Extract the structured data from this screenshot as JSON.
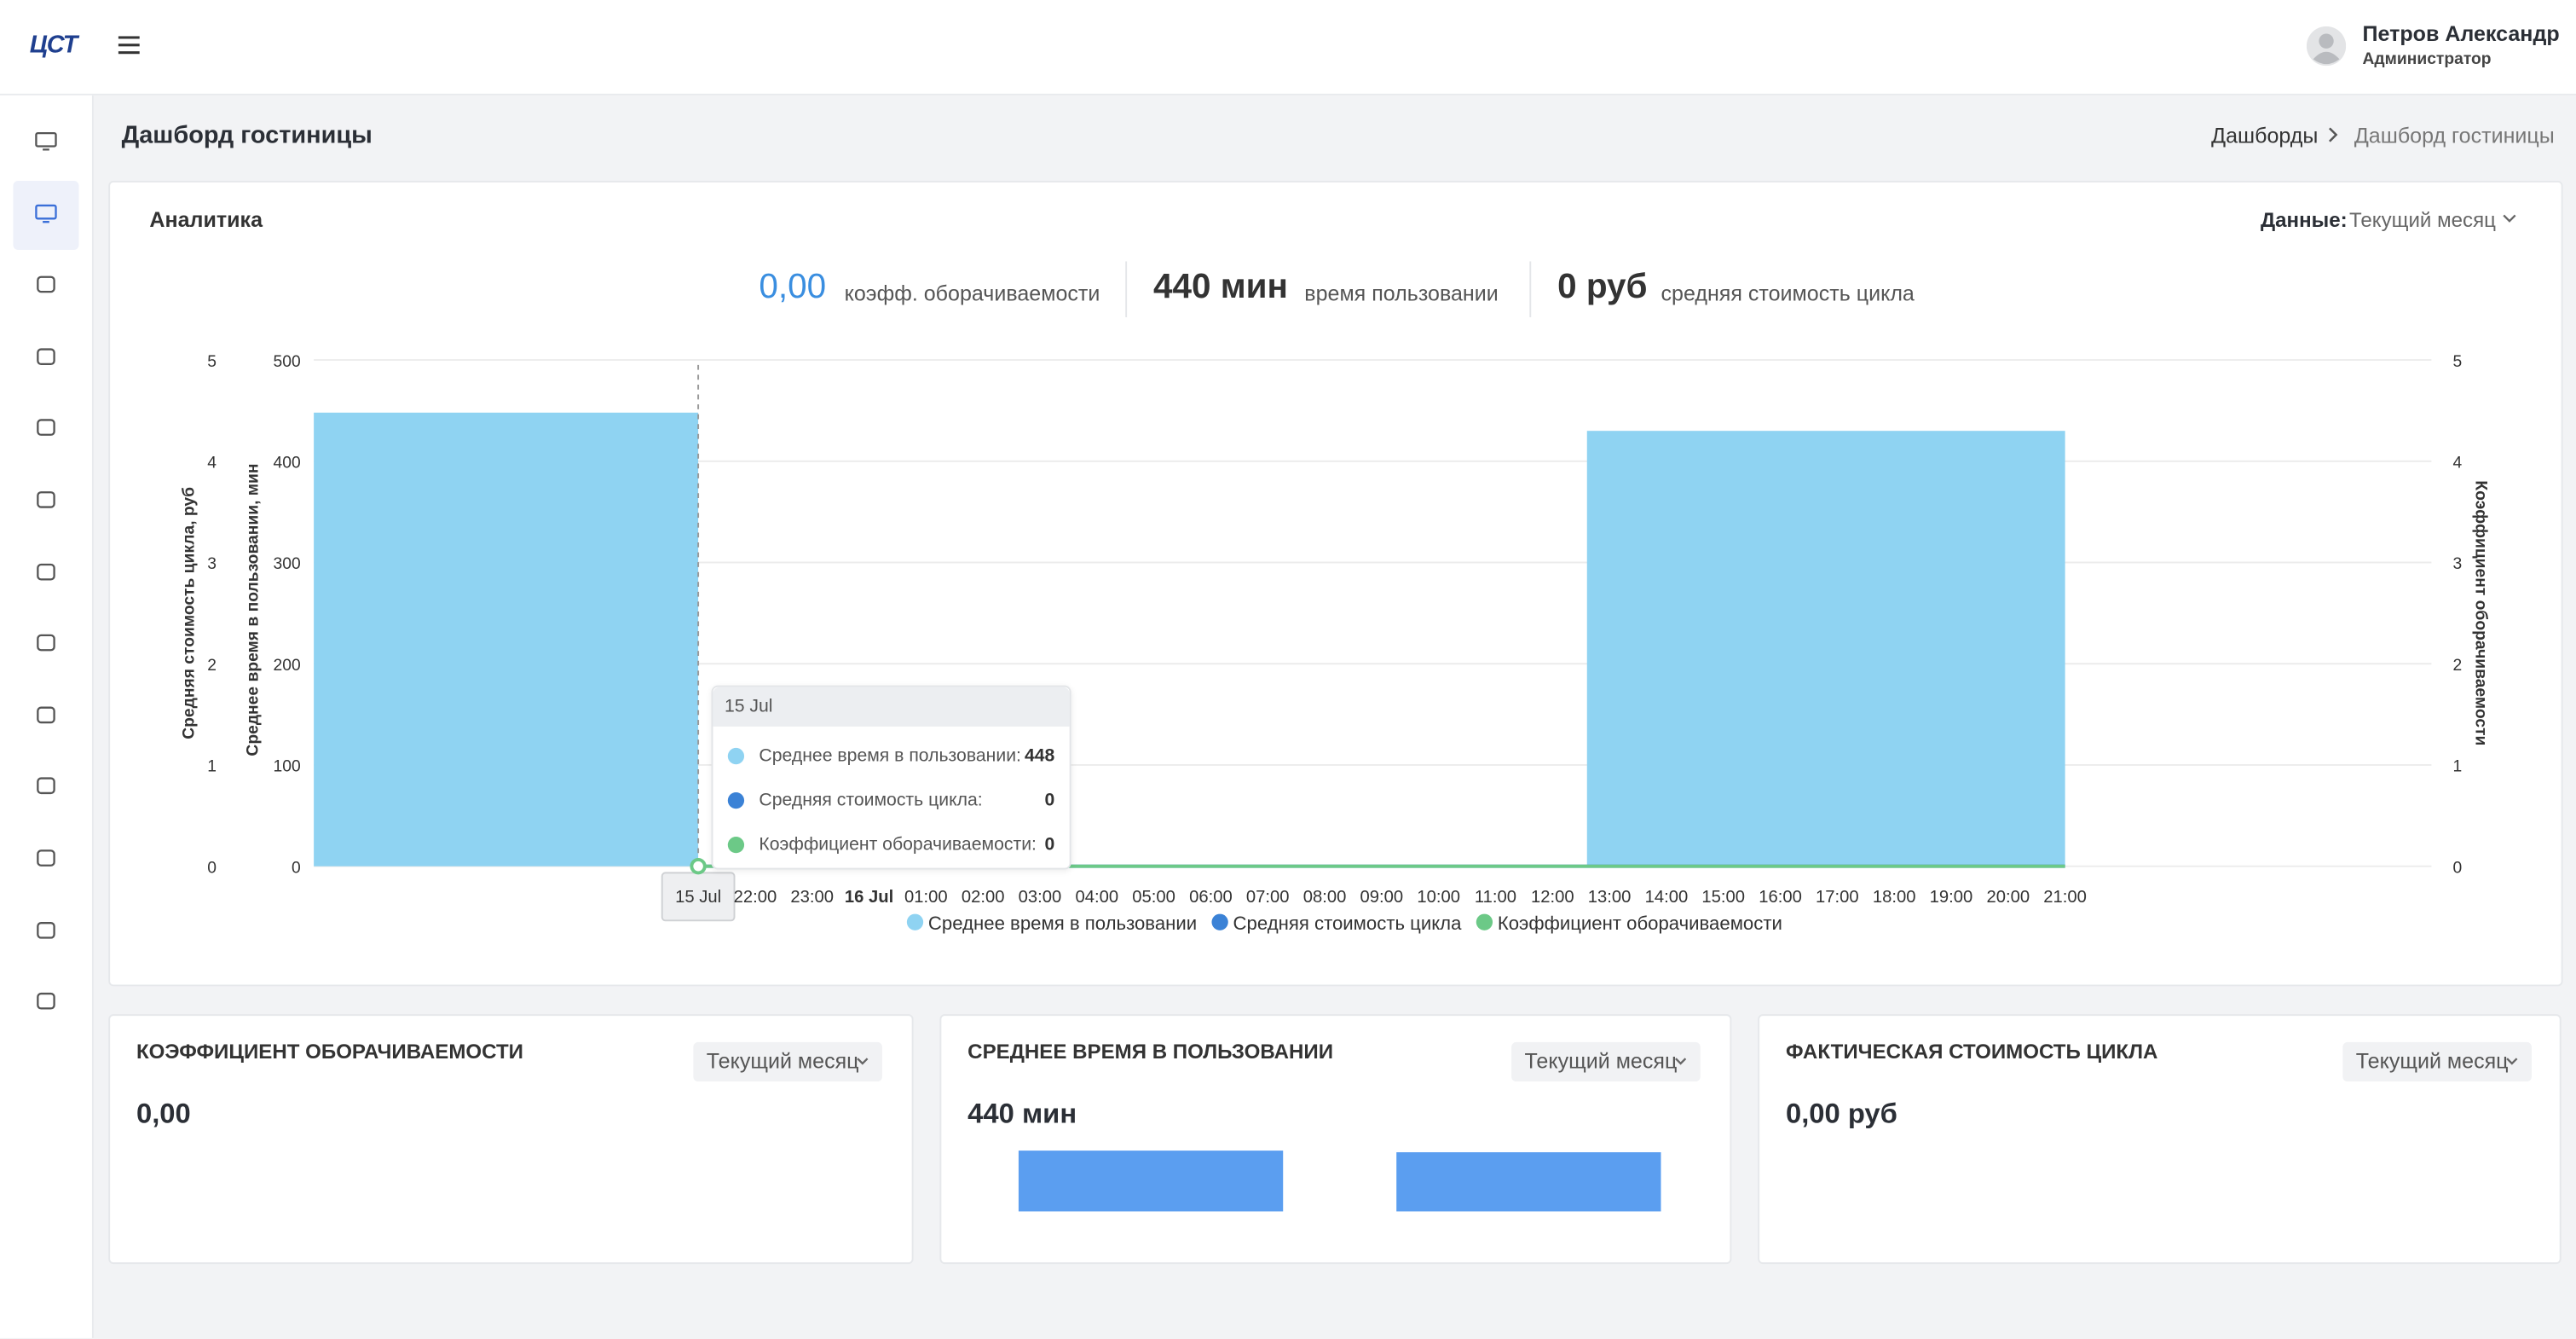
{
  "header": {
    "logo": "ЦСТ",
    "user_name": "Петров Александр",
    "user_role": "Администратор"
  },
  "page": {
    "title": "Дашборд гостиницы",
    "breadcrumbs": [
      "Дашборды",
      "Дашборд гостиницы"
    ]
  },
  "analytics": {
    "title": "Аналитика",
    "filter_label": "Данные:",
    "filter_value": "Текущий месяц",
    "kpis": [
      {
        "value": "0,00",
        "label": "коэфф. оборачиваемости"
      },
      {
        "value": "440 мин",
        "label": "время пользовании"
      },
      {
        "value": "0 руб",
        "label": "средняя стоимость цикла"
      }
    ]
  },
  "chart_data": {
    "type": "bar",
    "categories": [
      "15 Jul",
      "16 Jul"
    ],
    "xtick_labels": [
      "15 Jul",
      "22:00",
      "23:00",
      "16 Jul",
      "01:00",
      "02:00",
      "03:00",
      "04:00",
      "05:00",
      "06:00",
      "07:00",
      "08:00",
      "09:00",
      "10:00",
      "11:00",
      "12:00",
      "13:00",
      "14:00",
      "15:00",
      "16:00",
      "17:00",
      "18:00",
      "19:00",
      "20:00",
      "21:00"
    ],
    "series": [
      {
        "name": "Среднее время в пользовании",
        "color": "#8fd3f2",
        "values": [
          448,
          430
        ]
      },
      {
        "name": "Средняя стоимость цикла",
        "color": "#3b82d6",
        "values": [
          0,
          0
        ],
        "axis": "y3"
      },
      {
        "name": "Коэффициент оборачиваемости",
        "color": "#6cc987",
        "values": [
          0,
          0
        ],
        "axis": "y2"
      }
    ],
    "ylabel": "Среднее время в пользовании, мин",
    "ylim": [
      0,
      500
    ],
    "yticks": [
      0,
      100,
      200,
      300,
      400,
      500
    ],
    "y3label": "Средняя стоимость цикла, руб",
    "y3lim": [
      0,
      5
    ],
    "y3ticks": [
      0,
      1,
      2,
      3,
      4,
      5
    ],
    "y2label": "Коэффициент оборачиваемости",
    "y2lim": [
      0,
      5
    ],
    "y2ticks": [
      0,
      1,
      2,
      3,
      4,
      5
    ],
    "grid": true,
    "tooltip": {
      "title": "15 Jul",
      "rows": [
        {
          "label": "Среднее время в пользовании:",
          "value": 448
        },
        {
          "label": "Средняя стоимость цикла:",
          "value": 0
        },
        {
          "label": "Коэффициент оборачиваемости:",
          "value": 0
        }
      ]
    }
  },
  "cards": [
    {
      "title": "КОЭФФИЦИЕНТ ОБОРАЧИВАЕМОСТИ",
      "filter": "Текущий месяц",
      "value": "0,00"
    },
    {
      "title": "СРЕДНЕЕ ВРЕМЯ В ПОЛЬЗОВАНИИ",
      "filter": "Текущий месяц",
      "value": "440 мин",
      "bars": [
        448,
        430
      ]
    },
    {
      "title": "ФАКТИЧЕСКАЯ СТОИМОСТЬ ЦИКЛА",
      "filter": "Текущий месяц",
      "value": "0,00 руб"
    }
  ]
}
